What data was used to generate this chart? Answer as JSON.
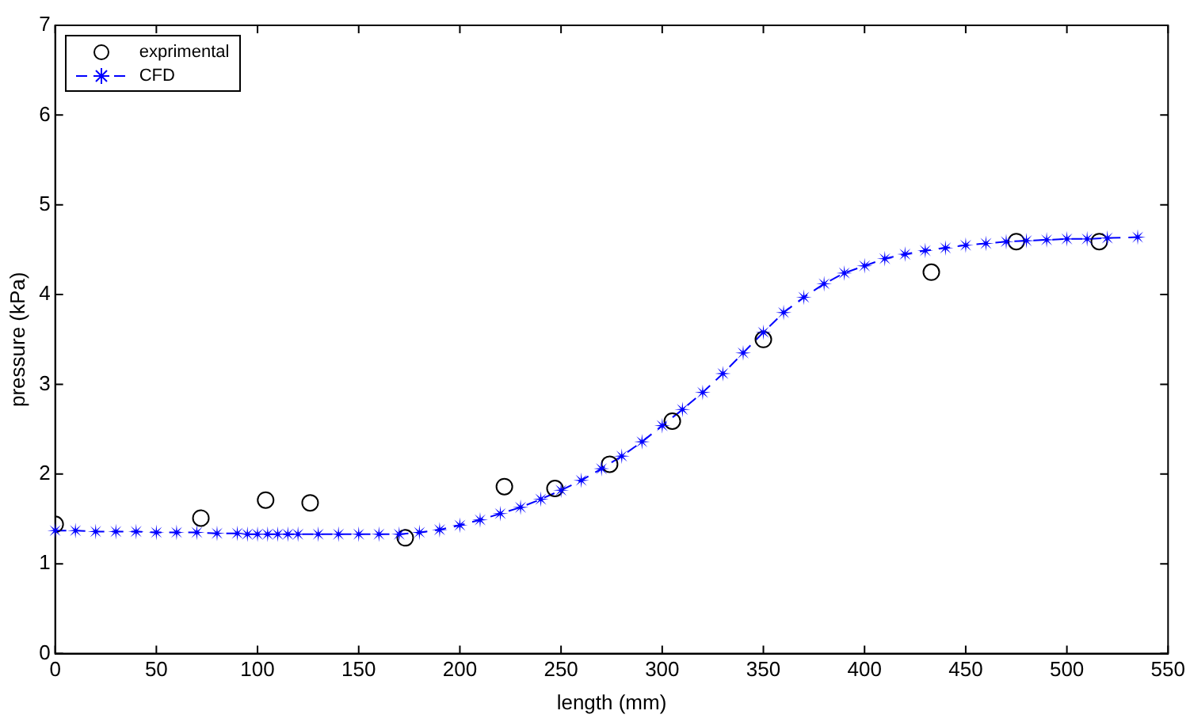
{
  "chart_data": {
    "type": "scatter",
    "xlabel": "length (mm)",
    "ylabel": "pressure (kPa)",
    "xlim": [
      0,
      550
    ],
    "xticks": [
      0,
      50,
      100,
      150,
      200,
      250,
      300,
      350,
      400,
      450,
      500,
      550
    ],
    "ylim": [
      0,
      7
    ],
    "yticks": [
      0,
      1,
      2,
      3,
      4,
      5,
      6,
      7
    ],
    "grid": false,
    "legend": "top left",
    "series": [
      {
        "name": "exprimental",
        "color": "#000000",
        "marker": "circle",
        "line_style": "none",
        "x": [
          0,
          72,
          104,
          126,
          173,
          222,
          247,
          274,
          305,
          350,
          433,
          475,
          516
        ],
        "values": [
          1.44,
          1.51,
          1.71,
          1.68,
          1.29,
          1.86,
          1.84,
          2.11,
          2.59,
          3.5,
          4.25,
          4.59,
          4.59
        ]
      },
      {
        "name": "CFD",
        "color": "#0000ff",
        "type": "line",
        "marker": "star",
        "line_style": "dashed",
        "x": [
          0,
          10,
          20,
          30,
          40,
          50,
          60,
          70,
          80,
          90,
          95,
          100,
          105,
          110,
          115,
          120,
          130,
          140,
          150,
          160,
          170,
          180,
          190,
          200,
          210,
          220,
          230,
          240,
          250,
          260,
          270,
          280,
          290,
          300,
          310,
          320,
          330,
          340,
          350,
          360,
          370,
          380,
          390,
          400,
          410,
          420,
          430,
          440,
          450,
          460,
          470,
          480,
          490,
          500,
          510,
          520,
          535
        ],
        "values": [
          1.37,
          1.37,
          1.36,
          1.36,
          1.36,
          1.35,
          1.35,
          1.35,
          1.34,
          1.34,
          1.33,
          1.33,
          1.33,
          1.33,
          1.33,
          1.33,
          1.33,
          1.33,
          1.33,
          1.33,
          1.33,
          1.35,
          1.38,
          1.43,
          1.49,
          1.56,
          1.63,
          1.72,
          1.82,
          1.93,
          2.06,
          2.2,
          2.36,
          2.54,
          2.72,
          2.91,
          3.12,
          3.35,
          3.58,
          3.8,
          3.97,
          4.12,
          4.24,
          4.32,
          4.4,
          4.45,
          4.49,
          4.52,
          4.55,
          4.57,
          4.59,
          4.6,
          4.61,
          4.62,
          4.62,
          4.63,
          4.64
        ]
      }
    ]
  }
}
